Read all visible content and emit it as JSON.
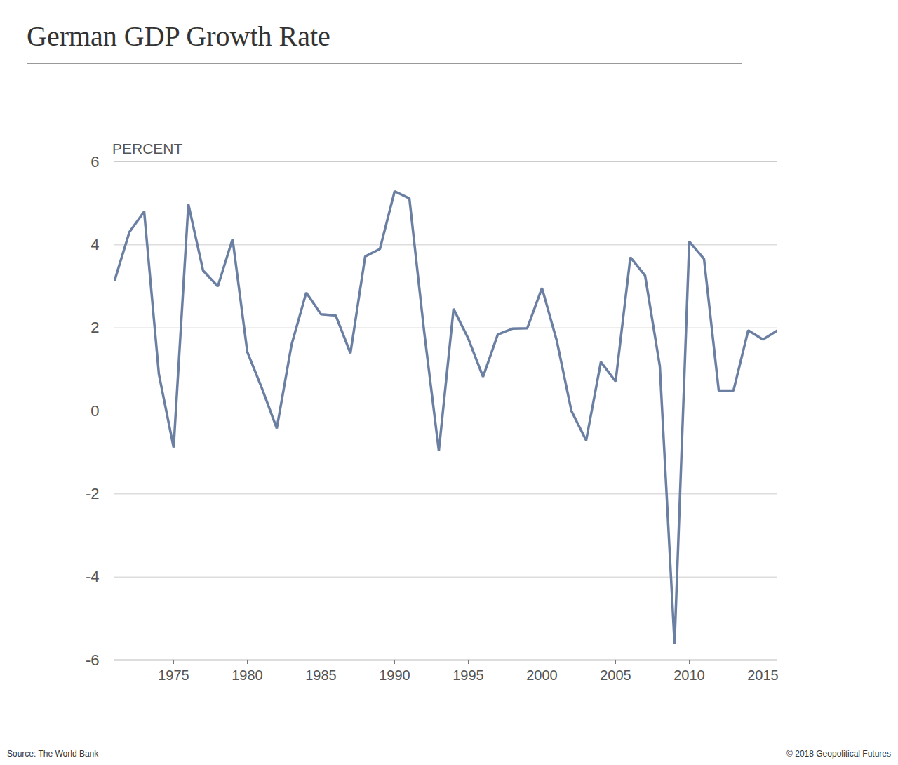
{
  "chart_data": {
    "type": "line",
    "title": "German GDP Growth Rate",
    "y_label": "PERCENT",
    "source": "Source: The World Bank",
    "copyright": "© 2018 Geopolitical Futures",
    "x": [
      1971,
      1972,
      1973,
      1974,
      1975,
      1976,
      1977,
      1978,
      1979,
      1980,
      1981,
      1982,
      1983,
      1984,
      1985,
      1986,
      1987,
      1988,
      1989,
      1990,
      1991,
      1992,
      1993,
      1994,
      1995,
      1996,
      1997,
      1998,
      1999,
      2000,
      2001,
      2002,
      2003,
      2004,
      2005,
      2006,
      2007,
      2008,
      2009,
      2010,
      2011,
      2012,
      2013,
      2014,
      2015,
      2016
    ],
    "values": [
      3.15,
      4.31,
      4.8,
      0.88,
      -0.88,
      4.98,
      3.38,
      3.0,
      4.14,
      1.42,
      0.54,
      -0.42,
      1.59,
      2.85,
      2.33,
      2.3,
      1.39,
      3.72,
      3.9,
      5.29,
      5.12,
      1.92,
      -0.96,
      2.46,
      1.74,
      0.82,
      1.84,
      1.98,
      1.99,
      2.96,
      1.7,
      0.0,
      -0.71,
      1.18,
      0.71,
      3.7,
      3.26,
      1.08,
      -5.62,
      4.08,
      3.66,
      0.49,
      0.49,
      1.94,
      1.72,
      1.94
    ],
    "color": "#6b7fa3",
    "xlim": [
      1971,
      2016
    ],
    "ylim": [
      -6,
      6
    ],
    "xticks": [
      1975,
      1980,
      1985,
      1990,
      1995,
      2000,
      2005,
      2010,
      2015
    ],
    "yticks": [
      -6,
      -4,
      -2,
      0,
      2,
      4,
      6
    ],
    "grid": true
  }
}
